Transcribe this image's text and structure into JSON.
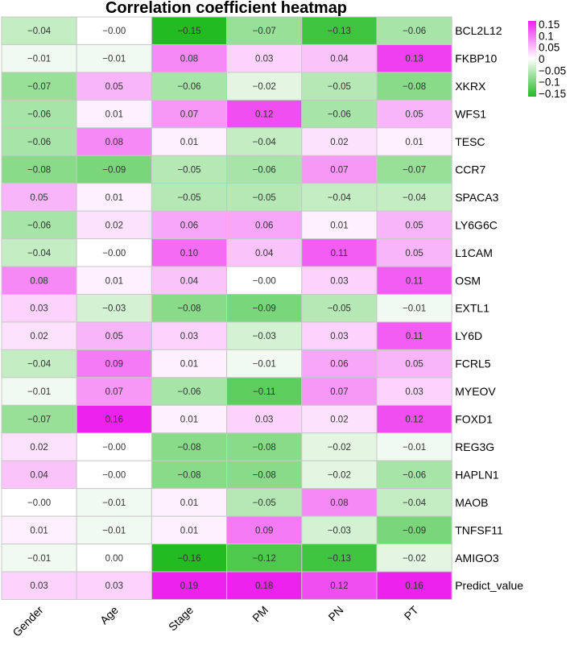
{
  "chart_data": {
    "type": "heatmap",
    "title": "Correlation coefficient heatmap",
    "columns": [
      "Gender",
      "Age",
      "Stage",
      "PM",
      "PN",
      "PT"
    ],
    "rows": [
      "BCL2L12",
      "FKBP10",
      "XKRX",
      "WFS1",
      "TESC",
      "CCR7",
      "SPACA3",
      "LY6G6C",
      "L1CAM",
      "OSM",
      "EXTL1",
      "LY6D",
      "FCRL5",
      "MYEOV",
      "FOXD1",
      "REG3G",
      "HAPLN1",
      "MAOB",
      "TNFSF11",
      "AMIGO3",
      "Predict_value"
    ],
    "values": [
      [
        -0.04,
        -0.0,
        -0.15,
        -0.07,
        -0.13,
        -0.06
      ],
      [
        -0.01,
        -0.01,
        0.08,
        0.03,
        0.04,
        0.13
      ],
      [
        -0.07,
        0.05,
        -0.06,
        -0.02,
        -0.05,
        -0.08
      ],
      [
        -0.06,
        0.01,
        0.07,
        0.12,
        -0.06,
        0.05
      ],
      [
        -0.06,
        0.08,
        0.01,
        -0.04,
        0.02,
        0.01
      ],
      [
        -0.08,
        -0.09,
        -0.05,
        -0.06,
        0.07,
        -0.07
      ],
      [
        0.05,
        0.01,
        -0.05,
        -0.05,
        -0.04,
        -0.04
      ],
      [
        -0.06,
        0.02,
        0.06,
        0.06,
        0.01,
        0.05
      ],
      [
        -0.04,
        -0.0,
        0.1,
        0.04,
        0.11,
        0.05
      ],
      [
        0.08,
        0.01,
        0.04,
        -0.0,
        0.03,
        0.11
      ],
      [
        0.03,
        -0.03,
        -0.08,
        -0.09,
        -0.05,
        -0.01
      ],
      [
        0.02,
        0.05,
        0.03,
        -0.03,
        0.03,
        0.11
      ],
      [
        -0.04,
        0.09,
        0.01,
        -0.01,
        0.06,
        0.05
      ],
      [
        -0.01,
        0.07,
        -0.06,
        -0.11,
        0.07,
        0.03
      ],
      [
        -0.07,
        0.16,
        0.01,
        0.03,
        0.02,
        0.12
      ],
      [
        0.02,
        -0.0,
        -0.08,
        -0.08,
        -0.02,
        -0.01
      ],
      [
        0.04,
        -0.0,
        -0.08,
        -0.08,
        -0.02,
        -0.06
      ],
      [
        -0.0,
        -0.01,
        0.01,
        -0.05,
        0.08,
        -0.04
      ],
      [
        0.01,
        -0.01,
        0.01,
        0.09,
        -0.03,
        -0.09
      ],
      [
        -0.01,
        0.0,
        -0.16,
        -0.12,
        -0.13,
        -0.02
      ],
      [
        0.03,
        0.03,
        0.19,
        0.18,
        0.12,
        0.16
      ]
    ],
    "value_labels": [
      [
        "−0.04",
        "−0.00",
        "−0.15",
        "−0.07",
        "−0.13",
        "−0.06"
      ],
      [
        "−0.01",
        "−0.01",
        "0.08",
        "0.03",
        "0.04",
        "0.13"
      ],
      [
        "−0.07",
        "0.05",
        "−0.06",
        "−0.02",
        "−0.05",
        "−0.08"
      ],
      [
        "−0.06",
        "0.01",
        "0.07",
        "0.12",
        "−0.06",
        "0.05"
      ],
      [
        "−0.06",
        "0.08",
        "0.01",
        "−0.04",
        "0.02",
        "0.01"
      ],
      [
        "−0.08",
        "−0.09",
        "−0.05",
        "−0.06",
        "0.07",
        "−0.07"
      ],
      [
        "0.05",
        "0.01",
        "−0.05",
        "−0.05",
        "−0.04",
        "−0.04"
      ],
      [
        "−0.06",
        "0.02",
        "0.06",
        "0.06",
        "0.01",
        "0.05"
      ],
      [
        "−0.04",
        "−0.00",
        "0.10",
        "0.04",
        "0.11",
        "0.05"
      ],
      [
        "0.08",
        "0.01",
        "0.04",
        "−0.00",
        "0.03",
        "0.11"
      ],
      [
        "0.03",
        "−0.03",
        "−0.08",
        "−0.09",
        "−0.05",
        "−0.01"
      ],
      [
        "0.02",
        "0.05",
        "0.03",
        "−0.03",
        "0.03",
        "0.11"
      ],
      [
        "−0.04",
        "0.09",
        "0.01",
        "−0.01",
        "0.06",
        "0.05"
      ],
      [
        "−0.01",
        "0.07",
        "−0.06",
        "−0.11",
        "0.07",
        "0.03"
      ],
      [
        "−0.07",
        "0.16",
        "0.01",
        "0.03",
        "0.02",
        "0.12"
      ],
      [
        "0.02",
        "−0.00",
        "−0.08",
        "−0.08",
        "−0.02",
        "−0.01"
      ],
      [
        "0.04",
        "−0.00",
        "−0.08",
        "−0.08",
        "−0.02",
        "−0.06"
      ],
      [
        "−0.00",
        "−0.01",
        "0.01",
        "−0.05",
        "0.08",
        "−0.04"
      ],
      [
        "0.01",
        "−0.01",
        "0.01",
        "0.09",
        "−0.03",
        "−0.09"
      ],
      [
        "−0.01",
        "0.00",
        "−0.16",
        "−0.12",
        "−0.13",
        "−0.02"
      ],
      [
        "0.03",
        "0.03",
        "0.19",
        "0.18",
        "0.12",
        "0.16"
      ]
    ],
    "color_scale": {
      "negative": "#22bb22",
      "zero": "#ffffff",
      "positive": "#ee22ee",
      "cell_border": "#c8c8c8",
      "range": [
        -0.15,
        0.15
      ]
    },
    "legend": {
      "placement": "top-right",
      "tick_values": [
        0.15,
        0.1,
        0.05,
        0,
        -0.05,
        -0.1,
        -0.15
      ],
      "tick_labels": [
        "0.15",
        "0.1",
        "0.05",
        "0",
        "−0.05",
        "−0.1",
        "−0.15"
      ]
    }
  }
}
